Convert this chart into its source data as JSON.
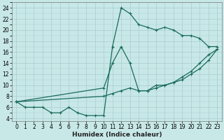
{
  "xlabel": "Humidex (Indice chaleur)",
  "background_color": "#c8e8e8",
  "grid_color": "#a8cccc",
  "line_color": "#1a6b5a",
  "xlim": [
    -0.5,
    23.5
  ],
  "ylim": [
    3.5,
    25
  ],
  "xticks": [
    0,
    1,
    2,
    3,
    4,
    5,
    6,
    7,
    8,
    9,
    10,
    11,
    12,
    13,
    14,
    15,
    16,
    17,
    18,
    19,
    20,
    21,
    22,
    23
  ],
  "yticks": [
    4,
    6,
    8,
    10,
    12,
    14,
    16,
    18,
    20,
    22,
    24
  ],
  "line1_x": [
    0,
    1,
    2,
    3,
    4,
    5,
    6,
    7,
    8,
    9,
    10,
    11,
    12,
    13,
    14,
    15,
    16,
    17,
    18,
    19,
    20,
    21,
    22,
    23
  ],
  "line1_y": [
    7,
    6,
    6,
    6,
    5,
    5,
    6,
    5,
    4.5,
    4.5,
    4.5,
    17,
    24,
    23,
    21,
    20.5,
    20,
    20.5,
    20,
    19,
    19,
    18.5,
    17,
    17
  ],
  "line2_x": [
    0,
    10,
    11,
    12,
    13,
    14,
    15,
    16,
    17,
    18,
    19,
    20,
    21,
    22,
    23
  ],
  "line2_y": [
    7,
    9.5,
    14,
    17,
    14,
    9,
    9,
    10,
    10,
    10.5,
    11.5,
    12.5,
    14,
    15.5,
    16.5
  ],
  "line3_x": [
    0,
    10,
    11,
    12,
    13,
    14,
    15,
    16,
    17,
    18,
    19,
    20,
    21,
    22,
    23
  ],
  "line3_y": [
    7,
    8,
    8.5,
    9,
    9.5,
    9,
    9,
    9.5,
    10,
    10.5,
    11,
    12,
    13,
    14.5,
    16.5
  ]
}
